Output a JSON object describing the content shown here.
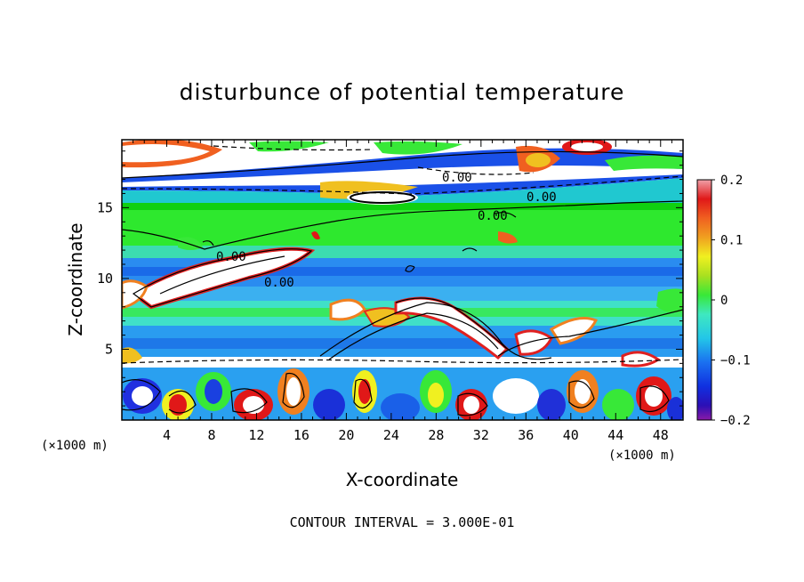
{
  "chart_data": {
    "type": "heatmap",
    "title": "disturbunce of potential temperature",
    "xlabel": "X-coordinate",
    "ylabel": "Z-coordinate",
    "x_unit_label": "(×1000 m)",
    "z_unit_label": "(×1000 m)",
    "xlim": [
      0,
      50
    ],
    "ylim": [
      0,
      19.8
    ],
    "x_ticks": [
      4,
      8,
      12,
      16,
      20,
      24,
      28,
      32,
      36,
      40,
      44,
      48
    ],
    "y_ticks": [
      5,
      10,
      15
    ],
    "colorbar": {
      "range": [
        -0.2,
        0.2
      ],
      "ticks": [
        0.2,
        0.1,
        0,
        -0.1,
        -0.2
      ],
      "tick_labels": [
        "0.2",
        "0.1",
        "0",
        "−0.1",
        "−0.2"
      ]
    },
    "contour_labels": [
      "0.00",
      "0.00",
      "0.00",
      "0.00",
      "0.00"
    ],
    "footnote": "CONTOUR INTERVAL = 3.000E-01",
    "grid": false
  }
}
